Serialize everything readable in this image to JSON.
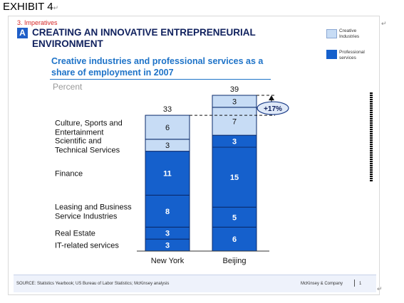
{
  "exhibit_label": "EXHIBIT 4",
  "section_label": "3. Imperatives",
  "section_letter": "A",
  "slide_title": "CREATING AN INNOVATIVE ENTREPRENEURIAL ENVIRONMENT",
  "colors": {
    "creative": "#c7dcf5",
    "professional": "#1560cc",
    "title": "#10215e",
    "subtitle": "#1e73c8"
  },
  "legend": [
    {
      "label": "Creative Industries",
      "color": "#c7dcf5"
    },
    {
      "label": "Professional services",
      "color": "#1560cc"
    }
  ],
  "chart_data": {
    "type": "bar",
    "stacked": true,
    "title": "Creative industries and professional services as a share of employment in 2007",
    "ylabel": "Percent",
    "categories": [
      "New York",
      "Beijing"
    ],
    "totals": [
      33,
      39
    ],
    "series": [
      {
        "name": "IT-related services",
        "group": "professional",
        "values": [
          3,
          6
        ]
      },
      {
        "name": "Real Estate",
        "group": "professional",
        "values": [
          3,
          5
        ]
      },
      {
        "name": "Leasing and Business Service Industries",
        "group": "professional",
        "values": [
          8,
          15
        ]
      },
      {
        "name": "Finance",
        "group": "professional",
        "values": [
          11,
          3
        ]
      },
      {
        "name": "Scientific and Technical Services",
        "group": "creative",
        "values": [
          3,
          7
        ]
      },
      {
        "name": "Culture, Sports and Entertainment",
        "group": "creative",
        "values": [
          6,
          3
        ]
      }
    ],
    "series_display_labels": [
      "IT-related services",
      "Real Estate",
      "Leasing and Business Service Industries",
      "Finance",
      "Scientific and Technical Services",
      "Culture, Sports and Entertainment"
    ],
    "annotation": "+17%"
  },
  "footer": {
    "source": "SOURCE: Statistics Yearbook; US Bureau of Labor Statistics; McKinsey analysis",
    "brand": "McKinsey & Company",
    "page": "1"
  }
}
